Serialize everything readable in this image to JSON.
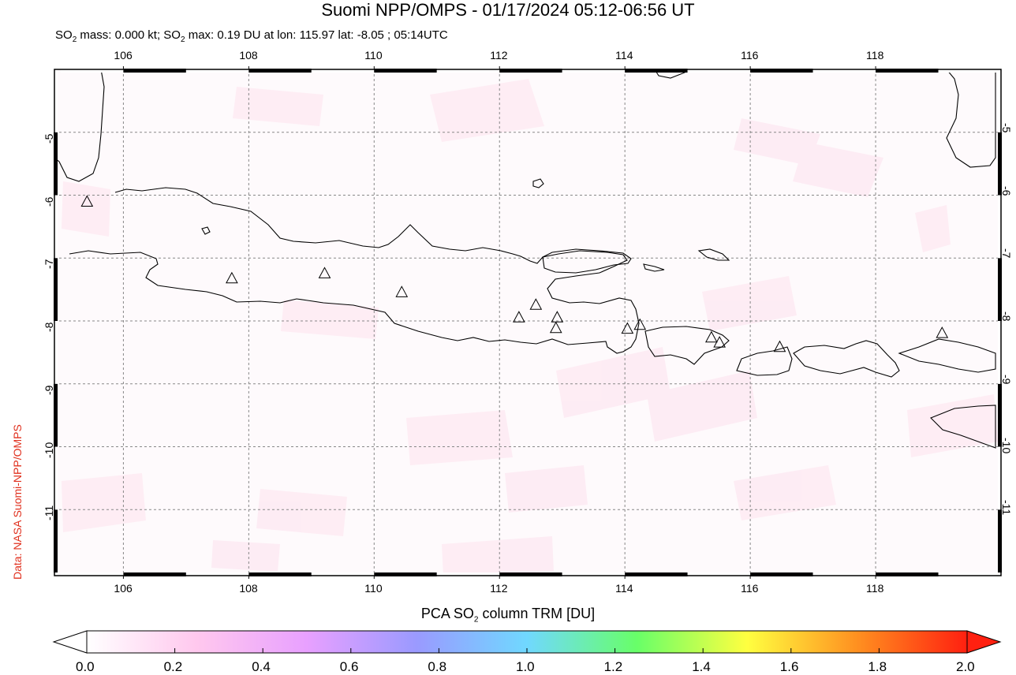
{
  "title": "Suomi NPP/OMPS - 01/17/2024 05:12-06:56 UT",
  "subtitle": {
    "p1": "SO",
    "p1_sub": "2",
    "p2": " mass: 0.000 kt; SO",
    "p2_sub": "2",
    "p3": " max: 0.19 DU at lon: 115.97 lat: -8.05 ; 05:14UTC"
  },
  "credit": "Data: NASA Suomi-NPP/OMPS",
  "map": {
    "lon_range": [
      104.9,
      120.0
    ],
    "lat_range": [
      -12.05,
      -4.0
    ],
    "lon_ticks": [
      "106",
      "108",
      "110",
      "112",
      "114",
      "116",
      "118"
    ],
    "lat_ticks": [
      "-5",
      "-6",
      "-7",
      "-8",
      "-9",
      "-10",
      "-11"
    ],
    "grid": "dashed",
    "volcanoes": [
      [
        105.42,
        -6.1
      ],
      [
        107.73,
        -7.32
      ],
      [
        109.21,
        -7.24
      ],
      [
        110.44,
        -7.54
      ],
      [
        112.31,
        -7.94
      ],
      [
        112.58,
        -7.74
      ],
      [
        112.92,
        -7.94
      ],
      [
        112.9,
        -8.11
      ],
      [
        114.04,
        -8.12
      ],
      [
        114.24,
        -8.06
      ],
      [
        115.38,
        -8.26
      ],
      [
        115.51,
        -8.34
      ],
      [
        116.47,
        -8.41
      ],
      [
        119.06,
        -8.19
      ]
    ],
    "colors": {
      "coast": "#000000",
      "grid": "#888888",
      "background": "#fefafc",
      "faint_pixel": "#fde8f2"
    }
  },
  "colorbar": {
    "title_pre": "PCA SO",
    "title_sub": "2",
    "title_post": " column TRM [DU]",
    "ticks": [
      "0.0",
      "0.2",
      "0.4",
      "0.6",
      "0.8",
      "1.0",
      "1.2",
      "1.4",
      "1.6",
      "1.8",
      "2.0"
    ],
    "min": 0.0,
    "max": 2.0,
    "stops": [
      "#ffffff",
      "#ffc8ee",
      "#e8a0ff",
      "#9a9aff",
      "#70d8ff",
      "#68ff68",
      "#ffff40",
      "#ff9020",
      "#ff2010"
    ],
    "under_color": "#ffffff",
    "over_color": "#ff2010"
  }
}
